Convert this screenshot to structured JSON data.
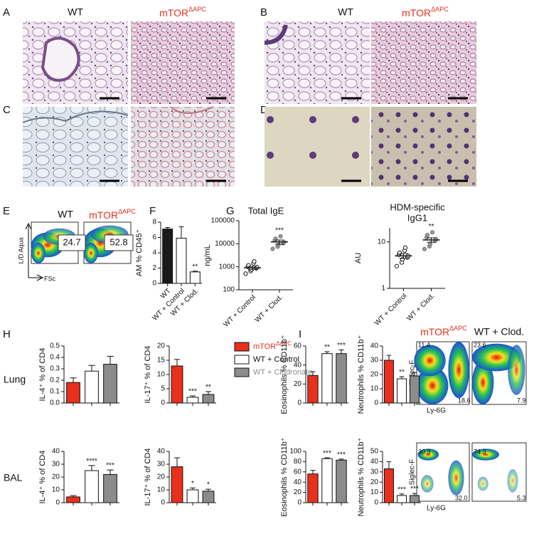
{
  "panel_labels": [
    "A",
    "B",
    "C",
    "D",
    "E",
    "F",
    "G",
    "H",
    "I"
  ],
  "histology": {
    "wt": "WT",
    "mtor": "mTOR",
    "mtor_sup": "ΔAPC"
  },
  "flow_e": {
    "wt": "WT",
    "mtor": "mTOR",
    "mtor_sup": "ΔAPC",
    "gates": [
      "24.7",
      "52.8"
    ],
    "y_label": "L/D Aqua",
    "x_label": "FSc"
  },
  "legend": [
    {
      "name": "mTOR",
      "sup": "ΔAPC",
      "color": "#e8301c",
      "text_color": "#e8301c"
    },
    {
      "name": "WT + Control",
      "color": "#ffffff",
      "text_color": "#111111"
    },
    {
      "name": "WT + Clodronate",
      "color": "#8c8c8c",
      "text_color": "#8c8c8c"
    }
  ],
  "rows": [
    "Lung",
    "BAL"
  ],
  "flow_i": {
    "mtor": "mTOR",
    "mtor_sup": "ΔAPC",
    "clod": "WT + Clod.",
    "y_label": "Siglec-F",
    "x_label": "Ly-6G",
    "lung_gates": [
      "11.4",
      "18.6",
      "23.6",
      "7.9"
    ],
    "bal_gates": [
      "30.9",
      "32.0",
      "74.3",
      "5.3"
    ]
  },
  "chart_data": [
    {
      "type": "bar",
      "ylabel": "AM % CD45⁺",
      "categories": [
        "WT",
        "WT + Control",
        "WT + Clod."
      ],
      "values": [
        7.1,
        5.9,
        1.5
      ],
      "errors": [
        0.2,
        1.5,
        0.1
      ],
      "annotations": [
        null,
        null,
        "**"
      ],
      "colors": [
        "#1a1a1a",
        "#ffffff",
        "#ffffff"
      ],
      "ylim": [
        0,
        8
      ],
      "yticks": [
        0,
        2,
        4,
        6,
        8
      ]
    },
    {
      "type": "scatter",
      "title": [
        "Total IgE"
      ],
      "ylabel": "ng/mL",
      "log_scale": true,
      "categories": [
        "WT + Control",
        "WT + Clod."
      ],
      "series": [
        {
          "values": [
            500,
            650,
            750,
            850,
            950,
            1000,
            1150,
            1400,
            1700
          ]
        },
        {
          "values": [
            6000,
            7500,
            9000,
            10500,
            12000,
            14000,
            16500,
            21000
          ]
        }
      ],
      "means": [
        900,
        12000
      ],
      "errors": [
        150,
        2500
      ],
      "annotations": [
        null,
        "***"
      ],
      "ylim": [
        100,
        100000
      ],
      "yticks": [
        100,
        1000,
        10000,
        100000
      ]
    },
    {
      "type": "scatter",
      "title": [
        "HDM-specific",
        "IgG1"
      ],
      "ylabel": "AU",
      "log_scale": true,
      "categories": [
        "WT + Control",
        "WT + Clod."
      ],
      "series": [
        {
          "values": [
            3,
            3.6,
            4.2,
            4.6,
            5,
            5.3,
            5.8,
            6.5,
            7.5
          ]
        },
        {
          "values": [
            7,
            8,
            9,
            10.5,
            11.5,
            12.5,
            14,
            16
          ]
        }
      ],
      "means": [
        5,
        11
      ],
      "errors": [
        0.6,
        1.2
      ],
      "annotations": [
        null,
        "**"
      ],
      "ylim": [
        1,
        20
      ],
      "yticks": [
        1,
        10
      ]
    },
    {
      "type": "bar",
      "ylabel": "IL-4⁺ % of CD4",
      "categories": [
        null,
        null,
        null
      ],
      "values": [
        0.18,
        0.28,
        0.34
      ],
      "errors": [
        0.04,
        0.05,
        0.07
      ],
      "colors": [
        "#e8301c",
        "#ffffff",
        "#8c8c8c"
      ],
      "ylim": [
        0,
        0.5
      ],
      "yticks": [
        {
          "value": 0,
          "label": "0.0"
        },
        0.1,
        0.2,
        0.3,
        0.4,
        0.5
      ]
    },
    {
      "type": "bar",
      "ylabel": "IL-17⁺ % of CD4",
      "categories": [
        null,
        null,
        null
      ],
      "values": [
        13,
        2,
        3
      ],
      "errors": [
        2.3,
        0.5,
        1
      ],
      "annotations": [
        null,
        "***",
        "**"
      ],
      "colors": [
        "#e8301c",
        "#ffffff",
        "#8c8c8c"
      ],
      "ylim": [
        0,
        20
      ],
      "yticks": [
        0,
        5,
        10,
        15,
        20
      ]
    },
    {
      "type": "bar",
      "ylabel": "IL-4⁺ % of CD4",
      "categories": [
        null,
        null,
        null
      ],
      "values": [
        4.5,
        25,
        22
      ],
      "errors": [
        1,
        4,
        3.5
      ],
      "annotations": [
        null,
        "****",
        "***"
      ],
      "colors": [
        "#e8301c",
        "#ffffff",
        "#8c8c8c"
      ],
      "ylim": [
        0,
        40
      ],
      "yticks": [
        0,
        10,
        20,
        30,
        40
      ]
    },
    {
      "type": "bar",
      "ylabel": "IL-17⁺ % of CD4",
      "categories": [
        null,
        null,
        null
      ],
      "values": [
        28,
        10,
        9
      ],
      "errors": [
        7,
        1.5,
        1.5
      ],
      "annotations": [
        null,
        "*",
        "*"
      ],
      "colors": [
        "#e8301c",
        "#ffffff",
        "#8c8c8c"
      ],
      "ylim": [
        0,
        40
      ],
      "yticks": [
        0,
        10,
        20,
        30,
        40
      ]
    },
    {
      "type": "bar",
      "ylabel": "Eosinophils % CD11b⁺",
      "categories": [
        null,
        null,
        null
      ],
      "values": [
        29,
        52,
        52
      ],
      "errors": [
        4,
        2,
        4
      ],
      "annotations": [
        null,
        "**",
        "***"
      ],
      "colors": [
        "#e8301c",
        "#ffffff",
        "#8c8c8c"
      ],
      "ylim": [
        0,
        60
      ],
      "yticks": [
        0,
        20,
        40,
        60
      ]
    },
    {
      "type": "bar",
      "ylabel": "Neutrophils % CD11b⁺",
      "categories": [
        null,
        null,
        null
      ],
      "values": [
        30,
        17,
        19
      ],
      "errors": [
        3.5,
        1.5,
        2.5
      ],
      "annotations": [
        null,
        "**",
        "*"
      ],
      "colors": [
        "#e8301c",
        "#ffffff",
        "#8c8c8c"
      ],
      "ylim": [
        0,
        40
      ],
      "yticks": [
        0,
        10,
        20,
        30,
        40
      ]
    },
    {
      "type": "bar",
      "ylabel": "Eosinophils % CD11b⁺",
      "categories": [
        null,
        null,
        null
      ],
      "values": [
        56,
        86,
        83
      ],
      "errors": [
        7,
        1.5,
        2
      ],
      "annotations": [
        null,
        "***",
        "***"
      ],
      "colors": [
        "#e8301c",
        "#ffffff",
        "#8c8c8c"
      ],
      "ylim": [
        0,
        100
      ],
      "yticks": [
        0,
        20,
        40,
        60,
        80,
        100
      ]
    },
    {
      "type": "bar",
      "ylabel": "Neutrophils % CD11b⁺",
      "categories": [
        null,
        null,
        null
      ],
      "values": [
        33,
        7,
        7
      ],
      "errors": [
        7,
        1.5,
        2
      ],
      "annotations": [
        null,
        "***",
        "***"
      ],
      "colors": [
        "#e8301c",
        "#ffffff",
        "#8c8c8c"
      ],
      "ylim": [
        0,
        50
      ],
      "yticks": [
        0,
        10,
        20,
        30,
        40,
        50
      ]
    }
  ]
}
